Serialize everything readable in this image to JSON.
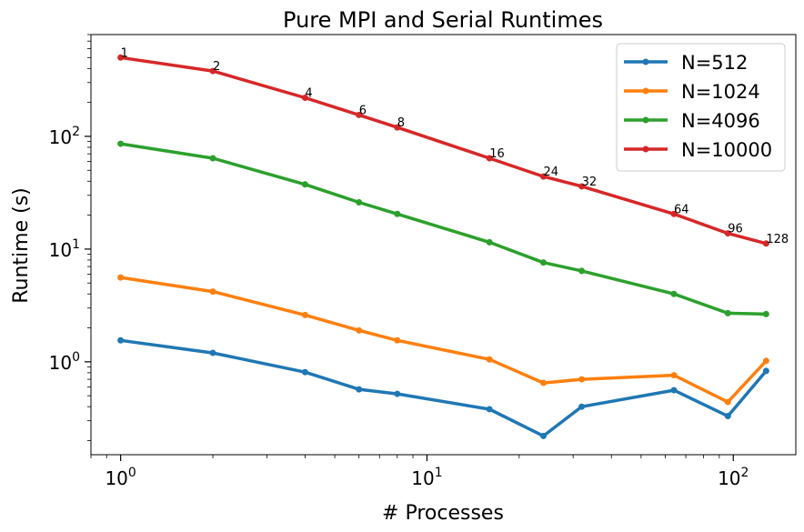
{
  "chart_data": {
    "type": "line",
    "title": "Pure MPI and Serial Runtimes",
    "xlabel": "# Processes",
    "ylabel": "Runtime (s)",
    "xscale": "log",
    "yscale": "log",
    "xlim": [
      0.8,
      160
    ],
    "ylim": [
      0.15,
      800
    ],
    "grid": false,
    "legend_position": "top-right",
    "x": [
      1,
      2,
      4,
      6,
      8,
      16,
      24,
      32,
      64,
      96,
      128
    ],
    "x_ticks": [
      {
        "value": 1,
        "base": "10",
        "exp": "0"
      },
      {
        "value": 10,
        "base": "10",
        "exp": "1"
      },
      {
        "value": 100,
        "base": "10",
        "exp": "2"
      }
    ],
    "y_ticks": [
      {
        "value": 1,
        "base": "10",
        "exp": "0"
      },
      {
        "value": 10,
        "base": "10",
        "exp": "1"
      },
      {
        "value": 100,
        "base": "10",
        "exp": "2"
      }
    ],
    "series": [
      {
        "name": "N=512",
        "color": "#1f77b4",
        "values": [
          1.55,
          1.2,
          0.81,
          0.57,
          0.52,
          0.38,
          0.22,
          0.4,
          0.56,
          0.33,
          0.83
        ]
      },
      {
        "name": "N=1024",
        "color": "#ff7f0e",
        "values": [
          5.6,
          4.2,
          2.6,
          1.9,
          1.55,
          1.05,
          0.65,
          0.7,
          0.76,
          0.44,
          1.02
        ]
      },
      {
        "name": "N=4096",
        "color": "#2ca02c",
        "values": [
          86,
          64,
          37.5,
          26,
          20.5,
          11.5,
          7.6,
          6.4,
          4.0,
          2.7,
          2.65
        ]
      },
      {
        "name": "N=10000",
        "color": "#d62728",
        "values": [
          500,
          380,
          220,
          155,
          120,
          64,
          44,
          36,
          20.5,
          13.8,
          11.2
        ]
      }
    ],
    "annotations": [
      {
        "text": "1",
        "x": 1,
        "y": 500
      },
      {
        "text": "2",
        "x": 2,
        "y": 380
      },
      {
        "text": "4",
        "x": 4,
        "y": 220
      },
      {
        "text": "6",
        "x": 6,
        "y": 155
      },
      {
        "text": "8",
        "x": 8,
        "y": 120
      },
      {
        "text": "16",
        "x": 16,
        "y": 64
      },
      {
        "text": "24",
        "x": 24,
        "y": 44
      },
      {
        "text": "32",
        "x": 32,
        "y": 36
      },
      {
        "text": "64",
        "x": 64,
        "y": 20.5
      },
      {
        "text": "96",
        "x": 96,
        "y": 13.8
      },
      {
        "text": "128",
        "x": 128,
        "y": 11.2
      }
    ]
  }
}
